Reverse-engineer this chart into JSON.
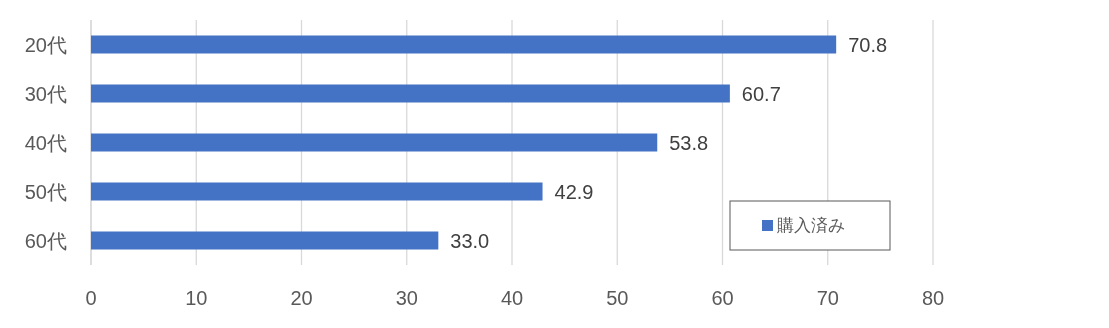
{
  "chart_data": {
    "type": "bar",
    "orientation": "horizontal",
    "categories": [
      "20代",
      "30代",
      "40代",
      "50代",
      "60代"
    ],
    "series": [
      {
        "name": "購入済み",
        "color": "#4472c4",
        "values": [
          70.8,
          60.7,
          53.8,
          42.9,
          33.0
        ],
        "value_labels": [
          "70.8",
          "60.7",
          "53.8",
          "42.9",
          "33.0"
        ]
      }
    ],
    "xlim": [
      0,
      80
    ],
    "xticks": [
      0,
      10,
      20,
      30,
      40,
      50,
      60,
      70,
      80
    ],
    "grid": "x",
    "legend": "bottom right"
  }
}
